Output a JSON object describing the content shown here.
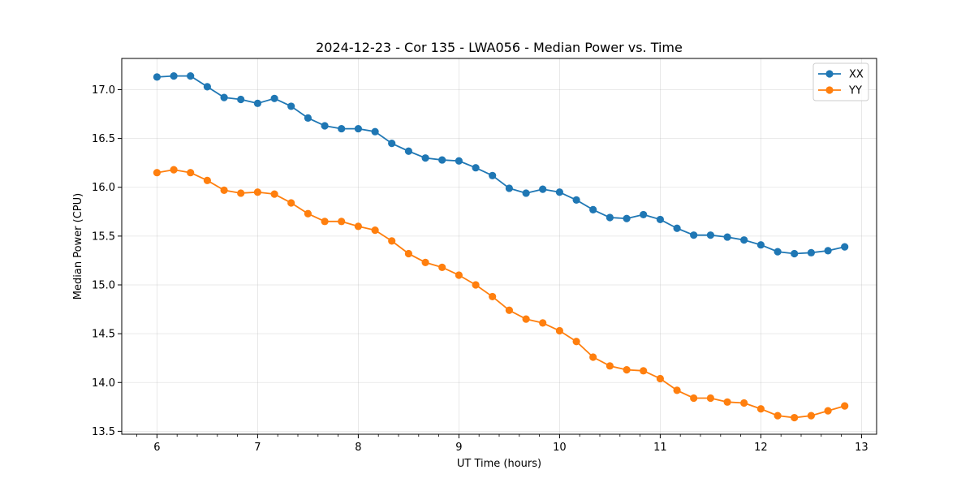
{
  "chart_data": {
    "type": "line",
    "title": "2024-12-23 - Cor 135 - LWA056 - Median Power vs. Time",
    "xlabel": "UT Time (hours)",
    "ylabel": "Median Power (CPU)",
    "xlim": [
      5.65,
      13.15
    ],
    "ylim": [
      13.47,
      17.32
    ],
    "xticks": [
      6,
      7,
      8,
      9,
      10,
      11,
      12,
      13
    ],
    "yticks": [
      13.5,
      14.0,
      14.5,
      15.0,
      15.5,
      16.0,
      16.5,
      17.0
    ],
    "grid": true,
    "legend_position": "top-right",
    "x": [
      6.0,
      6.167,
      6.333,
      6.5,
      6.667,
      6.833,
      7.0,
      7.167,
      7.333,
      7.5,
      7.667,
      7.833,
      8.0,
      8.167,
      8.333,
      8.5,
      8.667,
      8.833,
      9.0,
      9.167,
      9.333,
      9.5,
      9.667,
      9.833,
      10.0,
      10.167,
      10.333,
      10.5,
      10.667,
      10.833,
      11.0,
      11.167,
      11.333,
      11.5,
      11.667,
      11.833,
      12.0,
      12.167,
      12.333,
      12.5,
      12.667,
      12.833
    ],
    "series": [
      {
        "name": "XX",
        "color": "#1f77b4",
        "values": [
          17.13,
          17.14,
          17.14,
          17.03,
          16.92,
          16.9,
          16.86,
          16.91,
          16.83,
          16.71,
          16.63,
          16.6,
          16.6,
          16.57,
          16.45,
          16.37,
          16.3,
          16.28,
          16.27,
          16.2,
          16.12,
          15.99,
          15.94,
          15.98,
          15.95,
          15.87,
          15.77,
          15.69,
          15.68,
          15.72,
          15.67,
          15.58,
          15.51,
          15.51,
          15.49,
          15.46,
          15.41,
          15.34,
          15.32,
          15.33,
          15.35,
          15.39
        ]
      },
      {
        "name": "YY",
        "color": "#ff7f0e",
        "values": [
          16.15,
          16.18,
          16.15,
          16.07,
          15.97,
          15.94,
          15.95,
          15.93,
          15.84,
          15.73,
          15.65,
          15.65,
          15.6,
          15.56,
          15.45,
          15.32,
          15.23,
          15.18,
          15.1,
          15.0,
          14.88,
          14.74,
          14.65,
          14.61,
          14.53,
          14.42,
          14.26,
          14.17,
          14.13,
          14.12,
          14.04,
          13.92,
          13.84,
          13.84,
          13.8,
          13.79,
          13.73,
          13.66,
          13.64,
          13.66,
          13.71,
          13.76
        ]
      }
    ]
  }
}
